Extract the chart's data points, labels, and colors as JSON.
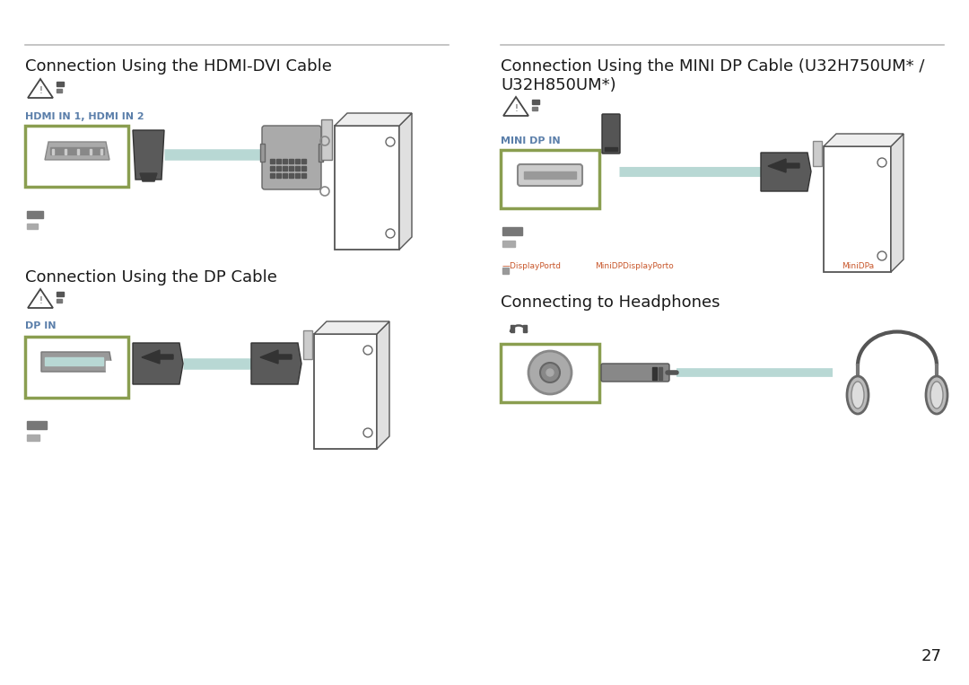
{
  "bg_color": "#ffffff",
  "text_color": "#1a1a1a",
  "blue_color": "#5b7faa",
  "orange_color": "#c8562a",
  "green_border": "#8a9e50",
  "cable_color": "#b8d8d4",
  "dark_gray": "#4a4a4a",
  "mid_gray": "#777777",
  "light_gray": "#cccccc",
  "divider_color": "#bbbbbb",
  "section1_title": "Connection Using the HDMI-DVI Cable",
  "section2_title": "Connection Using the MINI DP Cable (U32H750UM* /\nU32H850UM*)",
  "section3_title": "Connection Using the DP Cable",
  "section4_title": "Connecting to Headphones",
  "hdmi_label": "HDMI IN 1, HDMI IN 2",
  "mini_dp_label": "MINI DP IN",
  "dp_label": "DP IN",
  "page_number": "27",
  "orange_label1": "DisplayPortd",
  "orange_label2": "MiniDPDisplayPorto",
  "orange_label3": "MiniDPa"
}
